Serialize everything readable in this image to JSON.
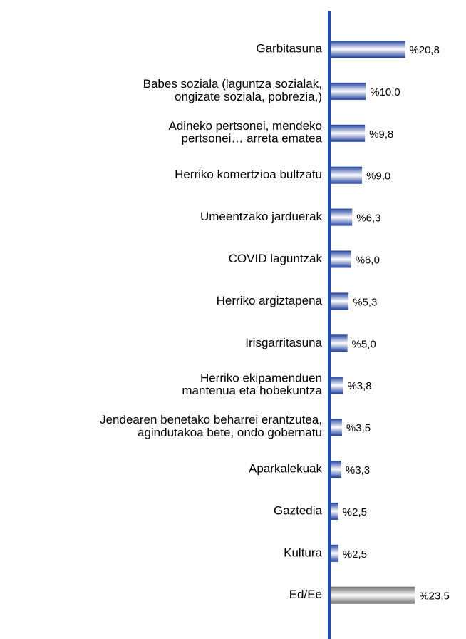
{
  "chart_data": {
    "type": "hbar",
    "categories": [
      "Garbitasuna",
      "Babes soziala (laguntza sozialak,\nongizate soziala, pobrezia,)",
      "Adineko pertsonei, mendeko\npertsonei… arreta ematea",
      "Herriko komertzioa bultzatu",
      "Umeentzako jarduerak",
      "COVID laguntzak",
      "Herriko argiztapena",
      "Irisgarritasuna",
      "Herriko ekipamenduen\nmantenua eta hobekuntza",
      "Jendearen benetako beharrei erantzutea,\nagindutakoa bete, ondo gobernatu",
      "Aparkalekuak",
      "Gaztedia",
      "Kultura",
      "Ed/Ee"
    ],
    "values": [
      20.8,
      10.0,
      9.8,
      9.0,
      6.3,
      6.0,
      5.3,
      5.0,
      3.8,
      3.5,
      3.3,
      2.5,
      2.5,
      23.5
    ],
    "value_labels": [
      "%20,8",
      "%10,0",
      "%9,8",
      "%9,0",
      "%6,3",
      "%6,0",
      "%5,3",
      "%5,0",
      "%3,8",
      "%3,5",
      "%3,3",
      "%2,5",
      "%2,5",
      "%23,5"
    ],
    "colors": [
      "#1f3f9f",
      "#1f3f9f",
      "#1f3f9f",
      "#1f3f9f",
      "#1f3f9f",
      "#1f3f9f",
      "#1f3f9f",
      "#1f3f9f",
      "#1f3f9f",
      "#1f3f9f",
      "#1f3f9f",
      "#1f3f9f",
      "#1f3f9f",
      "#6e6e6e"
    ],
    "axis_color": "#1a4fb4",
    "xlim": [
      0,
      25
    ]
  }
}
